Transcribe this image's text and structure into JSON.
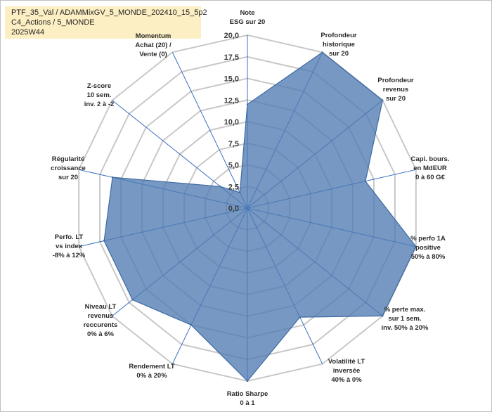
{
  "title_lines": [
    "PTF_35_Val / ADAMMixGV_5_MONDE_202410_15_5p2",
    "C4_Actions / 5_MONDE",
    "2025W44"
  ],
  "chart_data": {
    "type": "radar",
    "title": "PTF_35_Val / ADAMMixGV_5_MONDE_202410_15_5p2",
    "rmin": 0,
    "rmax": 20,
    "ticks": [
      "0,0",
      "2,5",
      "5,0",
      "7,5",
      "10,0",
      "12,5",
      "15,0",
      "17,5",
      "20,0"
    ],
    "tick_values": [
      0,
      2.5,
      5,
      7.5,
      10,
      12.5,
      15,
      17.5,
      20
    ],
    "axes": [
      {
        "lines": [
          "Note",
          "ESG sur 20"
        ],
        "value": 12,
        "anchor": "middle"
      },
      {
        "lines": [
          "Profondeur",
          "historique",
          "sur 20"
        ],
        "value": 20,
        "anchor": "middle"
      },
      {
        "lines": [
          "Profondeur",
          "revenus",
          "sur 20"
        ],
        "value": 20,
        "anchor": "middle"
      },
      {
        "lines": [
          "Capi. bours.",
          "en MdEUR",
          "0 à 60 G€"
        ],
        "value": 14,
        "anchor": "middle"
      },
      {
        "lines": [
          "% perfo 1A",
          "positive",
          "50% à 80%"
        ],
        "value": 20,
        "anchor": "middle"
      },
      {
        "lines": [
          "% perte max.",
          "sur 1 sem.",
          "inv. 50% à 20%"
        ],
        "value": 20,
        "anchor": "middle"
      },
      {
        "lines": [
          "Volatilité LT",
          "inversée",
          "40% à 0%"
        ],
        "value": 14,
        "anchor": "middle"
      },
      {
        "lines": [
          "Ratio Sharpe",
          "0 à 1"
        ],
        "value": 20,
        "anchor": "middle"
      },
      {
        "lines": [
          "Rendement LT",
          "0% à 20%"
        ],
        "value": 15,
        "anchor": "middle"
      },
      {
        "lines": [
          "Niveau LT",
          "revenus",
          "reccurents",
          "0% à 6%"
        ],
        "value": 17,
        "anchor": "middle"
      },
      {
        "lines": [
          "Perfo. LT",
          "vs index",
          "-8% à 12%"
        ],
        "value": 17,
        "anchor": "middle"
      },
      {
        "lines": [
          "Régularité",
          "croissance",
          "sur 20"
        ],
        "value": 16,
        "anchor": "middle"
      },
      {
        "lines": [
          "Z-score",
          "10 sem.",
          "inv. 2 à -2"
        ],
        "value": 4,
        "anchor": "middle"
      },
      {
        "lines": [
          "Momentum",
          "Achat (20) /",
          "Vente (0)"
        ],
        "value": 2,
        "anchor": "middle"
      }
    ],
    "colors": {
      "fill": "#4f7bb2",
      "fill_opacity": 0.78,
      "stroke": "#3f6aa3",
      "grid": "#c8c8c8",
      "spoke": "#3a6fc4",
      "momentum_label": "#a08a50"
    }
  }
}
